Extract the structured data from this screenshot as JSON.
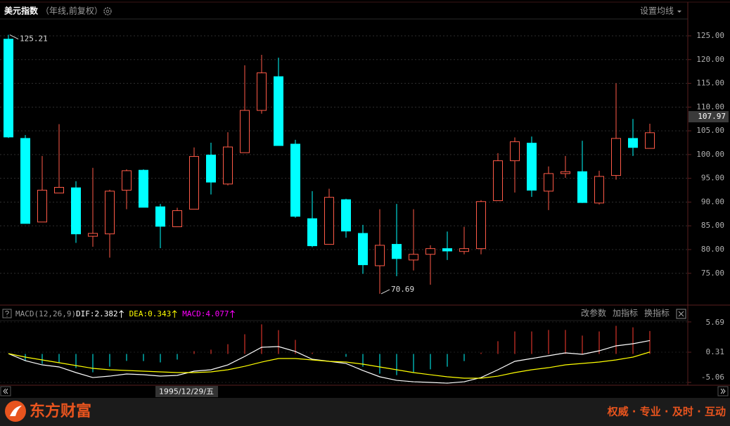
{
  "header": {
    "title": "美元指数",
    "subtitle": "（年线,前复权）",
    "settings": "设置均线"
  },
  "indicator_actions": [
    "改参数",
    "加指标",
    "换指标"
  ],
  "cursor_date": "1995/12/29/五",
  "footer": {
    "brand": "东方财富",
    "slogan": "权威 · 专业 · 及时 · 互动"
  },
  "chart_data": [
    {
      "type": "candlestick",
      "up_color": "#ff5a47",
      "down_color": "#00ffff",
      "open": [
        124.3,
        103.4,
        85.8,
        91.9,
        93.0,
        82.8,
        83.3,
        92.5,
        96.7,
        89.0,
        84.8,
        88.5,
        99.9,
        93.8,
        100.4,
        109.3,
        116.4,
        102.2,
        86.5,
        81.1,
        90.5,
        83.4,
        76.6,
        81.1,
        77.8,
        79.0,
        80.2,
        79.6,
        80.2,
        90.3,
        98.7,
        102.4,
        92.3,
        96.0,
        96.4,
        89.8,
        95.6,
        103.4,
        101.3
      ],
      "high": [
        125.21,
        104.1,
        99.7,
        106.4,
        94.4,
        97.2,
        92.6,
        96.9,
        96.9,
        89.6,
        88.8,
        101.5,
        102.5,
        104.7,
        118.8,
        121.0,
        120.4,
        103.1,
        92.3,
        92.8,
        90.7,
        85.2,
        88.5,
        89.6,
        88.5,
        80.9,
        83.8,
        84.8,
        90.4,
        100.3,
        103.6,
        103.8,
        97.5,
        99.7,
        102.9,
        96.6,
        115.0,
        107.5,
        106.5
      ],
      "low": [
        103.5,
        85.5,
        85.8,
        91.9,
        81.4,
        80.6,
        78.3,
        88.5,
        88.9,
        80.3,
        84.8,
        88.5,
        91.6,
        93.5,
        100.4,
        108.6,
        101.9,
        86.7,
        80.5,
        81.1,
        82.5,
        74.9,
        70.69,
        74.4,
        75.6,
        72.6,
        77.8,
        79.0,
        79.0,
        90.3,
        92.0,
        91.1,
        88.3,
        95.1,
        89.8,
        89.5,
        94.7,
        99.7,
        101.3
      ],
      "close": [
        103.7,
        85.5,
        92.5,
        93.1,
        83.3,
        83.4,
        92.3,
        96.6,
        88.9,
        84.9,
        88.2,
        99.6,
        94.2,
        101.6,
        109.3,
        117.2,
        101.9,
        87.0,
        80.8,
        91.0,
        83.9,
        76.8,
        80.9,
        78.1,
        79.0,
        80.2,
        79.7,
        80.2,
        90.1,
        98.7,
        102.7,
        92.5,
        96.0,
        96.4,
        89.9,
        95.4,
        103.4,
        101.5,
        104.6
      ],
      "annotations": [
        125.21,
        70.69
      ],
      "last_price": 107.97,
      "ylim": [
        68.9,
        128.4
      ],
      "yticks": [
        {
          "value": 75,
          "label": "75.00"
        },
        {
          "value": 80,
          "label": "80.00"
        },
        {
          "value": 85,
          "label": "85.00"
        },
        {
          "value": 90,
          "label": "90.00"
        },
        {
          "value": 95,
          "label": "95.00"
        },
        {
          "value": 100,
          "label": "100.00"
        },
        {
          "value": 105,
          "label": "105.00"
        },
        {
          "value": 110,
          "label": "110.00"
        },
        {
          "value": 115,
          "label": "115.00"
        },
        {
          "value": 120,
          "label": "120.00"
        },
        {
          "value": 125,
          "label": "125.00"
        }
      ],
      "grid": true
    },
    {
      "type": "macd",
      "title": "MACD(12,26,9)",
      "series": [
        {
          "name": "DIF:2.382",
          "color": "#ffffff",
          "values": [
            0.06,
            -1.19,
            -1.94,
            -2.31,
            -3.31,
            -4.19,
            -3.94,
            -3.56,
            -3.69,
            -3.94,
            -3.81,
            -3.06,
            -2.81,
            -1.94,
            -0.44,
            1.19,
            1.31,
            0.44,
            -0.94,
            -1.31,
            -1.69,
            -2.94,
            -4.06,
            -4.69,
            -4.94,
            -5.06,
            -5.19,
            -4.94,
            -4.19,
            -2.81,
            -1.31,
            -0.81,
            -0.31,
            0.19,
            -0.06,
            0.56,
            1.44,
            1.81,
            2.382
          ]
        },
        {
          "name": "DEA:0.343",
          "color": "#ffff00",
          "values": [
            0.06,
            -0.56,
            -1.06,
            -1.56,
            -2.06,
            -2.56,
            -2.81,
            -2.94,
            -3.06,
            -3.19,
            -3.31,
            -3.31,
            -3.19,
            -2.81,
            -2.19,
            -1.44,
            -0.81,
            -0.81,
            -1.06,
            -1.31,
            -1.44,
            -1.81,
            -2.31,
            -2.81,
            -3.31,
            -3.69,
            -4.06,
            -4.31,
            -4.31,
            -3.94,
            -3.31,
            -2.81,
            -2.44,
            -1.94,
            -1.69,
            -1.44,
            -1.06,
            -0.56,
            0.343
          ]
        },
        {
          "name": "MACD:4.077",
          "color": "#ff00ff",
          "values": [
            0,
            -1.26,
            -1.76,
            -1.5,
            -2.5,
            -3.26,
            -2.26,
            -1.24,
            -1.26,
            -1.5,
            -1.0,
            0.5,
            0.76,
            1.74,
            3.5,
            5.26,
            4.24,
            2.5,
            0.24,
            0,
            -0.5,
            -2.26,
            -3.5,
            -3.76,
            -3.26,
            -2.74,
            -2.26,
            -1.26,
            0.24,
            2.26,
            4.0,
            4.0,
            4.26,
            4.26,
            3.26,
            4.0,
            5.0,
            4.74,
            4.077
          ]
        }
      ],
      "up_color": "#ff3b30",
      "down_color": "#00ffff",
      "ylim": [
        -5.31,
        6.06
      ],
      "yticks": [
        -5.06,
        0.31,
        5.69
      ]
    }
  ]
}
